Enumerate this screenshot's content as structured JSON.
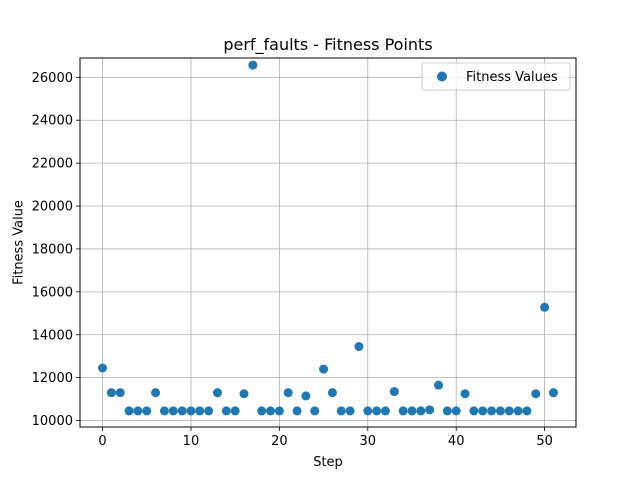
{
  "chart_data": {
    "type": "scatter",
    "title": "perf_faults - Fitness Points",
    "xlabel": "Step",
    "ylabel": "Fitness Value",
    "xlim": [
      -2.55,
      53.55
    ],
    "ylim": [
      9700,
      26900
    ],
    "xticks": [
      0,
      10,
      20,
      30,
      40,
      50
    ],
    "yticks": [
      10000,
      12000,
      14000,
      16000,
      18000,
      20000,
      22000,
      24000,
      26000
    ],
    "grid": true,
    "legend_position": "top-right",
    "series": [
      {
        "name": "Fitness Values",
        "color": "#1f77b4",
        "x": [
          0,
          1,
          2,
          3,
          4,
          5,
          6,
          7,
          8,
          9,
          10,
          11,
          12,
          13,
          14,
          15,
          16,
          17,
          18,
          19,
          20,
          21,
          22,
          23,
          24,
          25,
          26,
          27,
          28,
          29,
          30,
          31,
          32,
          33,
          34,
          35,
          36,
          37,
          38,
          39,
          40,
          41,
          42,
          43,
          44,
          45,
          46,
          47,
          48,
          49,
          50,
          51
        ],
        "y": [
          12450,
          11300,
          11300,
          10450,
          10450,
          10450,
          11300,
          10450,
          10450,
          10450,
          10450,
          10450,
          10450,
          11300,
          10450,
          10450,
          11250,
          26570,
          10450,
          10450,
          10450,
          11300,
          10450,
          11150,
          10450,
          12400,
          11300,
          10450,
          10450,
          13450,
          10450,
          10450,
          10450,
          11350,
          10450,
          10450,
          10450,
          10500,
          11650,
          10450,
          10450,
          11250,
          10450,
          10450,
          10450,
          10450,
          10450,
          10450,
          10450,
          11250,
          15280,
          11300
        ]
      }
    ]
  }
}
